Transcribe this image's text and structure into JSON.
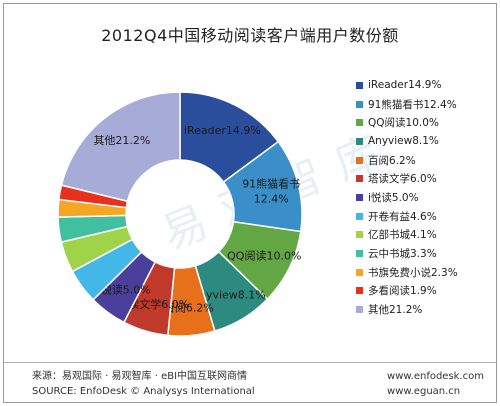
{
  "chart_data": {
    "type": "pie",
    "title": "2012Q4中国移动阅读客户端用户数份额",
    "slices": [
      {
        "name": "iReader",
        "value": 14.9,
        "legend": "iReader14.9%",
        "label_lines": [
          "iReader14.9%"
        ],
        "color": "#2a4d9c"
      },
      {
        "name": "91熊猫看书",
        "value": 12.4,
        "legend": "91熊猫看书12.4%",
        "label_lines": [
          "91熊猫看书",
          "12.4%"
        ],
        "color": "#3a8fc9"
      },
      {
        "name": "QQ阅读",
        "value": 10.0,
        "legend": "QQ阅读10.0%",
        "label_lines": [
          "QQ阅读10.0%"
        ],
        "color": "#62a744"
      },
      {
        "name": "Anyview",
        "value": 8.1,
        "legend": "Anyview8.1%",
        "label_lines": [
          "Anyview8.1%"
        ],
        "color": "#2d8a7e"
      },
      {
        "name": "百阅",
        "value": 6.2,
        "legend": "百阅6.2%",
        "label_lines": [
          "百阅6.2%"
        ],
        "color": "#e8701a"
      },
      {
        "name": "塔读文学",
        "value": 6.0,
        "legend": "塔读文学6.0%",
        "label_lines": [
          "塔读文学6.0%"
        ],
        "color": "#c0392b"
      },
      {
        "name": "i悦读",
        "value": 5.0,
        "legend": "i悦读5.0%",
        "label_lines": [
          "i悦读5.0%"
        ],
        "color": "#4a3f9a"
      },
      {
        "name": "开卷有益",
        "value": 4.6,
        "legend": "开卷有益4.6%",
        "label_lines": [],
        "color": "#43b8e8"
      },
      {
        "name": "亿部书城",
        "value": 4.1,
        "legend": "亿部书城4.1%",
        "label_lines": [],
        "color": "#9ed34a"
      },
      {
        "name": "云中书城",
        "value": 3.3,
        "legend": "云中书城3.3%",
        "label_lines": [],
        "color": "#40c0a0"
      },
      {
        "name": "书旗免费小说",
        "value": 2.3,
        "legend": "书旗免费小说2.3%",
        "label_lines": [],
        "color": "#f5a623"
      },
      {
        "name": "多看阅读",
        "value": 1.9,
        "legend": "多看阅读1.9%",
        "label_lines": [],
        "color": "#e8301c"
      },
      {
        "name": "其他",
        "value": 21.2,
        "legend": "其他21.2%",
        "label_lines": [
          "其他21.2%"
        ],
        "color": "#a7abd8"
      }
    ],
    "legend_position": "right"
  },
  "watermark": "易观智库",
  "footer": {
    "source_cn": "来源：易观国际 · 易观智库 · eBI中国互联网商情",
    "source_en": "SOURCE: EnfoDesk © Analysys International",
    "url1": "www.enfodesk.com",
    "url2": "www.eguan.cn"
  }
}
